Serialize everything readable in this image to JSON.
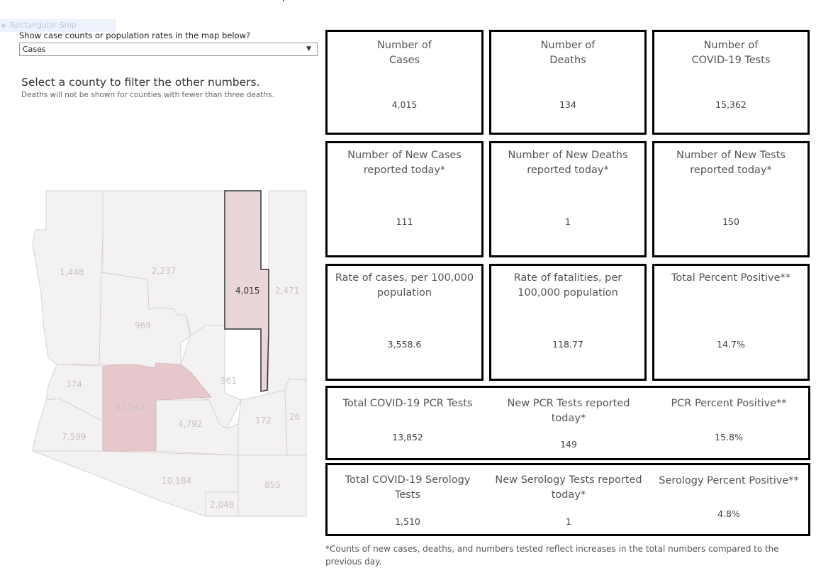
{
  "snip_tag": "Rectangular Snip",
  "filter": {
    "question": "Show case counts or population rates in the map below?",
    "selected": "Cases"
  },
  "instructions": {
    "heading": "Select a county to filter the other numbers.",
    "note": "Deaths will not be shown for counties with fewer than three deaths."
  },
  "map": {
    "selected_county_color": "#e9d6d8",
    "highlight_county_color": "#e6c8cc",
    "county_values": {
      "mohave": "1,448",
      "coconino": "2,237",
      "navajo": "4,015",
      "apache": "2,471",
      "yavapai": "969",
      "la_paz": "374",
      "maricopa": "67,543",
      "gila": "361",
      "yuma": "7,599",
      "pinal": "4,792",
      "graham": "172",
      "greenlee": "26",
      "pima": "10,184",
      "santa_cruz": "2,048",
      "cochise": "855"
    }
  },
  "cards": [
    {
      "title": [
        "Number of",
        "Cases"
      ],
      "value": "4,015"
    },
    {
      "title": [
        "Number of",
        "Deaths"
      ],
      "value": "134"
    },
    {
      "title": [
        "Number of",
        "COVID-19 Tests"
      ],
      "value": "15,362"
    },
    {
      "title": [
        "Number of New Cases",
        "reported today*"
      ],
      "value": "111"
    },
    {
      "title": [
        "Number of New Deaths",
        "reported today*"
      ],
      "value": "1"
    },
    {
      "title": [
        "Number of New Tests",
        "reported today*"
      ],
      "value": "150"
    },
    {
      "title": [
        "Rate of cases, per 100,000",
        "population"
      ],
      "value": "3,558.6"
    },
    {
      "title": [
        "Rate of fatalities, per",
        "100,000 population"
      ],
      "value": "118.77"
    },
    {
      "title": [
        "Total Percent Positive**",
        ""
      ],
      "value": "14.7%"
    }
  ],
  "pcr_row": [
    {
      "title": [
        "Total COVID-19 PCR Tests",
        ""
      ],
      "value": "13,852"
    },
    {
      "title": [
        "New PCR Tests reported",
        "today*"
      ],
      "value": "149"
    },
    {
      "title": [
        "PCR Percent Positive**",
        ""
      ],
      "value": "15.8%"
    }
  ],
  "serology_row": [
    {
      "title": [
        "Total COVID-19 Serology",
        "Tests"
      ],
      "value": "1,510"
    },
    {
      "title": [
        "New Serology Tests reported",
        "today*"
      ],
      "value": "1"
    },
    {
      "title": [
        "Serology Percent Positive**",
        ""
      ],
      "value": "4.8%"
    }
  ],
  "footnote": "*Counts of new cases, deaths, and numbers tested reflect increases in the total numbers compared to the previous day."
}
